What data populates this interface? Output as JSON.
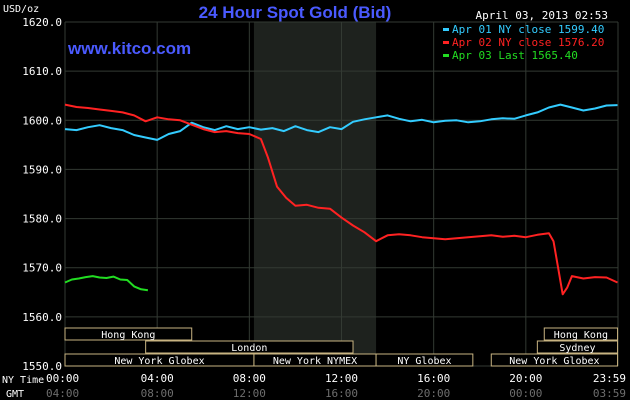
{
  "chart_data": {
    "type": "line",
    "title": "24 Hour Spot Gold (Bid)",
    "website": "www.kitco.com",
    "date": "April 03, 2013 02:53",
    "ylabel": "USD/oz",
    "ylim": [
      1550,
      1620
    ],
    "y_ticks": [
      "1620.0",
      "1610.0",
      "1600.0",
      "1590.0",
      "1580.0",
      "1570.0",
      "1560.0",
      "1550.0"
    ],
    "xlim": [
      0,
      24
    ],
    "x_label_ny": "NY Time",
    "x_label_gmt": "GMT",
    "x_ticks_ny": [
      "00:00",
      "04:00",
      "08:00",
      "12:00",
      "16:00",
      "20:00",
      "23:59"
    ],
    "x_ticks_gmt": [
      "04:00",
      "08:00",
      "12:00",
      "16:00",
      "20:00",
      "00:00",
      "03:59"
    ],
    "shaded_session_hours": [
      8.2,
      13.5
    ],
    "legend": [
      {
        "label": "Apr 01 NY close 1599.40",
        "color": "#33ccff"
      },
      {
        "label": "Apr 02 NY close 1576.20",
        "color": "#ff2222"
      },
      {
        "label": "Apr 03 Last 1565.40",
        "color": "#22dd22"
      }
    ],
    "series": [
      {
        "color": "#33ccff",
        "x": [
          0,
          0.5,
          1,
          1.5,
          2,
          2.5,
          3,
          3.5,
          4,
          4.5,
          5,
          5.5,
          6,
          6.5,
          7,
          7.5,
          8,
          8.5,
          9,
          9.5,
          10,
          10.5,
          11,
          11.5,
          12,
          12.5,
          13,
          13.5,
          14,
          14.5,
          15,
          15.5,
          16,
          16.5,
          17,
          17.5,
          18,
          18.5,
          19,
          19.5,
          20,
          20.5,
          21,
          21.5,
          22,
          22.5,
          23,
          23.5,
          23.98
        ],
        "values": [
          1598.2,
          1598.0,
          1598.6,
          1599.0,
          1598.4,
          1598.0,
          1597.0,
          1596.5,
          1596.0,
          1597.2,
          1597.8,
          1599.5,
          1598.6,
          1598.0,
          1598.8,
          1598.2,
          1598.6,
          1598.1,
          1598.4,
          1597.8,
          1598.8,
          1598.0,
          1597.6,
          1598.6,
          1598.2,
          1599.7,
          1600.2,
          1600.6,
          1601.0,
          1600.3,
          1599.8,
          1600.1,
          1599.6,
          1599.9,
          1600.0,
          1599.6,
          1599.8,
          1600.2,
          1600.4,
          1600.3,
          1601.0,
          1601.6,
          1602.6,
          1603.2,
          1602.6,
          1602.0,
          1602.4,
          1603.0,
          1603.1
        ]
      },
      {
        "color": "#ff2222",
        "x": [
          0,
          0.5,
          1,
          1.5,
          2,
          2.5,
          3,
          3.5,
          4,
          4.5,
          5,
          5.5,
          6,
          6.5,
          7,
          7.5,
          8,
          8.5,
          8.8,
          9.2,
          9.6,
          10,
          10.5,
          11,
          11.5,
          12,
          12.5,
          13,
          13.5,
          14,
          14.5,
          15,
          15.5,
          16,
          16.5,
          17,
          17.5,
          18,
          18.5,
          19,
          19.5,
          20,
          20.5,
          21,
          21.2,
          21.4,
          21.6,
          21.8,
          22,
          22.5,
          23,
          23.5,
          23.98
        ],
        "values": [
          1603.2,
          1602.7,
          1602.5,
          1602.2,
          1601.9,
          1601.6,
          1601.0,
          1599.8,
          1600.6,
          1600.2,
          1600.0,
          1599.1,
          1598.2,
          1597.6,
          1597.8,
          1597.4,
          1597.2,
          1596.2,
          1592.5,
          1586.5,
          1584.2,
          1582.6,
          1582.8,
          1582.2,
          1582.0,
          1580.2,
          1578.6,
          1577.2,
          1575.4,
          1576.6,
          1576.8,
          1576.6,
          1576.2,
          1576.0,
          1575.8,
          1576.0,
          1576.2,
          1576.4,
          1576.6,
          1576.3,
          1576.5,
          1576.2,
          1576.7,
          1577.0,
          1575.4,
          1570.0,
          1564.6,
          1566.0,
          1568.3,
          1567.8,
          1568.1,
          1568.0,
          1567.0
        ]
      },
      {
        "color": "#22dd22",
        "x": [
          0,
          0.3,
          0.6,
          0.9,
          1.2,
          1.5,
          1.8,
          2.1,
          2.4,
          2.7,
          3.0,
          3.3,
          3.6
        ],
        "values": [
          1567.0,
          1567.6,
          1567.8,
          1568.1,
          1568.3,
          1568.0,
          1567.9,
          1568.2,
          1567.6,
          1567.5,
          1566.2,
          1565.6,
          1565.4
        ]
      }
    ],
    "session_rows": [
      [
        {
          "label": "Hong Kong",
          "start": 0,
          "end": 5.5
        },
        {
          "label": "Hong Kong",
          "start": 20.8,
          "end": 23.98
        }
      ],
      [
        {
          "label": "London",
          "start": 3.5,
          "end": 12.5
        },
        {
          "label": "Sydney",
          "start": 20.5,
          "end": 23.98
        }
      ],
      [
        {
          "label": "New York Globex",
          "start": 0,
          "end": 8.2
        },
        {
          "label": "New York NYMEX",
          "start": 8.2,
          "end": 13.5
        },
        {
          "label": "NY Globex",
          "start": 13.5,
          "end": 17.7
        },
        {
          "label": "New York Globex",
          "start": 18.5,
          "end": 23.98
        }
      ]
    ],
    "grid": true
  }
}
